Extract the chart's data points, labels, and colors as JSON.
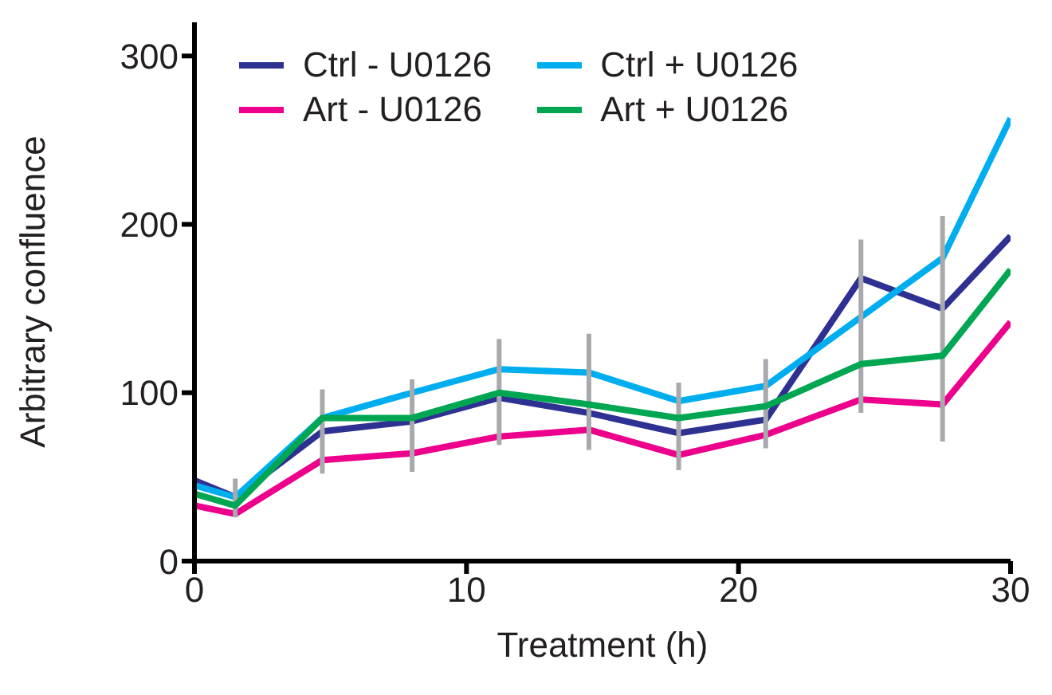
{
  "chart_data": {
    "type": "line",
    "xlabel": "Treatment (h)",
    "ylabel": "Arbitrary confluence",
    "x": [
      0,
      1.5,
      4.7,
      8,
      11.2,
      14.5,
      17.8,
      21,
      24.5,
      27.5,
      30
    ],
    "series": [
      {
        "name": "Ctrl - U0126",
        "color": "#2e3192",
        "values": [
          48,
          38,
          77,
          83,
          97,
          88,
          76,
          84,
          168,
          150,
          193
        ]
      },
      {
        "name": "Ctrl + U0126",
        "color": "#00aeef",
        "values": [
          45,
          38,
          85,
          100,
          114,
          112,
          95,
          104,
          145,
          180,
          263
        ]
      },
      {
        "name": "Art - U0126",
        "color": "#ec008c",
        "values": [
          33,
          28,
          60,
          64,
          74,
          78,
          63,
          75,
          96,
          93,
          142
        ]
      },
      {
        "name": "Art + U0126",
        "color": "#00a651",
        "values": [
          40,
          33,
          85,
          85,
          100,
          93,
          85,
          92,
          117,
          122,
          173
        ],
        "errors": [
          null,
          [
            26,
            49
          ],
          [
            52,
            102
          ],
          [
            53,
            108
          ],
          [
            69,
            132
          ],
          [
            66,
            135
          ],
          [
            54,
            106
          ],
          [
            67,
            120
          ],
          [
            88,
            191
          ],
          [
            71,
            205
          ],
          null
        ]
      }
    ],
    "xlim": [
      0,
      30
    ],
    "xticks": [
      0,
      10,
      20,
      30
    ],
    "ylim": [
      0,
      320
    ],
    "yticks": [
      0,
      100,
      200,
      300
    ],
    "grid": false,
    "legend": "top left",
    "marker": "none",
    "line_style": "solid"
  }
}
